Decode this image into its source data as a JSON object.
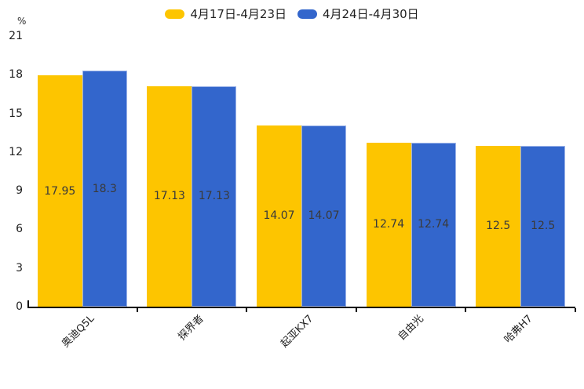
{
  "chart_data": {
    "type": "bar",
    "title": "",
    "xlabel": "",
    "ylabel": "%",
    "categories": [
      "奥迪Q5L",
      "探界者",
      "起亚KX7",
      "自由光",
      "哈弗H7"
    ],
    "series": [
      {
        "name": "4月17日-4月23日",
        "color": "#FDC500",
        "border_color": "#FDC500",
        "values": [
          17.95,
          17.13,
          14.07,
          12.74,
          12.5
        ]
      },
      {
        "name": "4月24日-4月30日",
        "color": "#3366CC",
        "border_color": "#9DB4E9",
        "values": [
          18.3,
          17.13,
          14.07,
          12.74,
          12.5
        ]
      }
    ],
    "ylim": [
      0,
      21
    ],
    "yticks": [
      0,
      3,
      6,
      9,
      12,
      15,
      18,
      21
    ],
    "grid": false,
    "legend_position": "top",
    "value_labels": true,
    "value_label_color": "#3a3a3a",
    "axis_color": "#000000",
    "text_color": "#1f1f1f",
    "background": "#ffffff"
  }
}
